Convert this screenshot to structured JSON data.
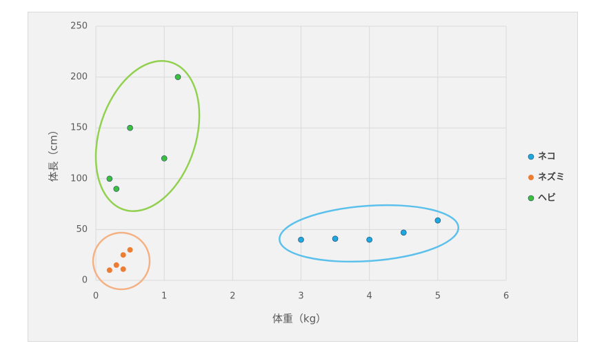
{
  "chart_data": {
    "type": "scatter",
    "x_label": "体重（kg）",
    "y_label": "体長（cm）",
    "xlim": [
      0,
      6
    ],
    "xticks": [
      0,
      1,
      2,
      3,
      4,
      5,
      6
    ],
    "ylim": [
      0,
      250
    ],
    "yticks": [
      0,
      50,
      100,
      150,
      200,
      250
    ],
    "grid": true,
    "legend": "right",
    "series": [
      {
        "name": "ネコ",
        "color": "#1fa8e0",
        "x": [
          3,
          3.5,
          4,
          4.5,
          5
        ],
        "values": [
          40,
          41,
          40,
          47,
          59
        ]
      },
      {
        "name": "ネズミ",
        "color": "#ed7d31",
        "x": [
          0.2,
          0.3,
          0.4,
          0.4,
          0.5
        ],
        "values": [
          10,
          15,
          25,
          11,
          30
        ]
      },
      {
        "name": "ヘビ",
        "color": "#3cbf3c",
        "x": [
          0.2,
          0.3,
          0.5,
          1.0,
          1.2
        ],
        "values": [
          100,
          90,
          150,
          120,
          200
        ]
      }
    ]
  }
}
